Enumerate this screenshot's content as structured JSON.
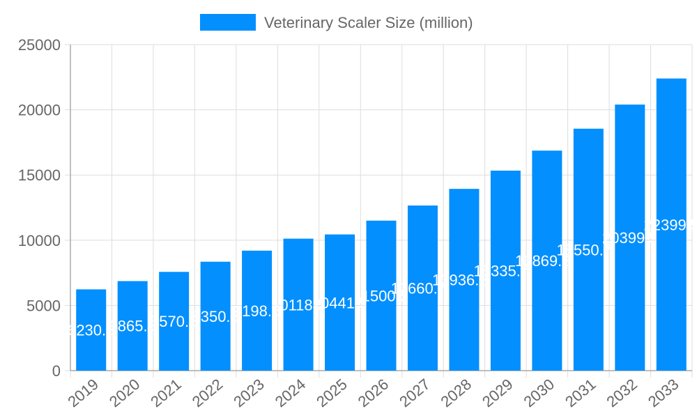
{
  "chart_data": {
    "type": "bar",
    "categories": [
      "2019",
      "2020",
      "2021",
      "2022",
      "2023",
      "2024",
      "2025",
      "2026",
      "2027",
      "2028",
      "2029",
      "2030",
      "2031",
      "2032",
      "2033"
    ],
    "series": [
      {
        "name": "Veterinary Scaler Size (million)",
        "values": [
          6230.5,
          6865.5,
          7570.5,
          8350.5,
          9198.5,
          10118.5,
          10441.5,
          11500.5,
          12660.75,
          13936.25,
          15335.75,
          16869.25,
          18550.75,
          20399.5,
          22399.5
        ]
      }
    ],
    "ylim": [
      0,
      25000
    ],
    "yticks": [
      0,
      5000,
      10000,
      15000,
      20000,
      25000
    ],
    "grid": true,
    "legend": "top-center",
    "bar_color": "#038ffe"
  }
}
